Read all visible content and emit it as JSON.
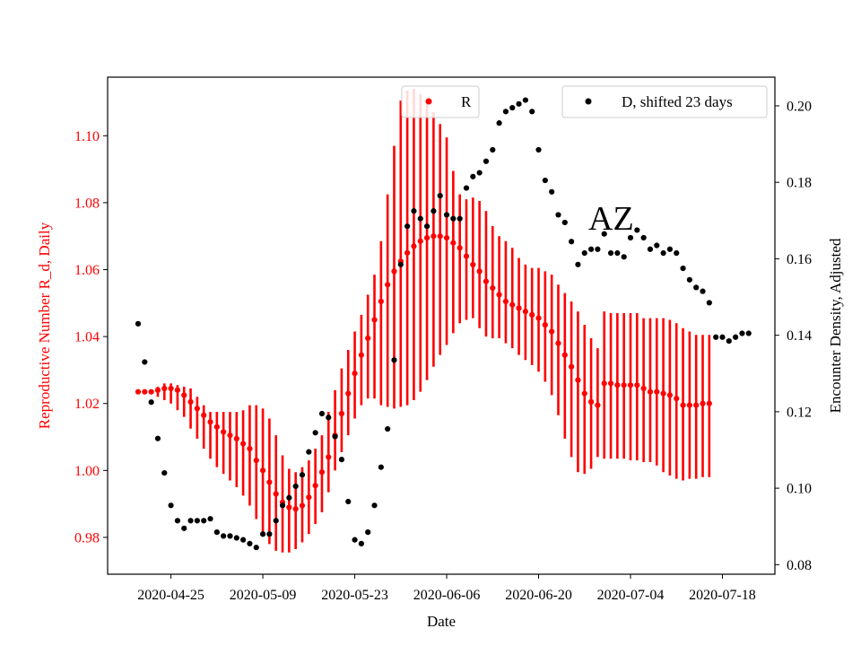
{
  "chart_data": {
    "type": "scatter",
    "title": "",
    "annotation": "AZ",
    "xlabel": "Date",
    "ylabel_left": "Reproductive Number R_d, Daily",
    "ylabel_right": "Encounter Density, Adjusted",
    "x_tick_labels": [
      "2020-04-25",
      "2020-05-09",
      "2020-05-23",
      "2020-06-06",
      "2020-06-20",
      "2020-07-04",
      "2020-07-18"
    ],
    "left_ticks": [
      "0.98",
      "1.00",
      "1.02",
      "1.04",
      "1.06",
      "1.08",
      "1.10"
    ],
    "right_ticks": [
      "0.08",
      "0.10",
      "0.12",
      "0.14",
      "0.16",
      "0.18",
      "0.20"
    ],
    "ylim_left": [
      0.969,
      1.1175
    ],
    "ylim_right": [
      0.0775,
      0.2075
    ],
    "grid": false,
    "colors": {
      "R": "#ff0000",
      "D": "#000000",
      "left_axis_text": "#ff0000"
    },
    "series": [
      {
        "name": "R",
        "legend_label": "R",
        "axis": "left",
        "x_start": "2020-04-20",
        "values": [
          1.0235,
          1.0235,
          1.0235,
          1.024,
          1.0245,
          1.0245,
          1.024,
          1.0225,
          1.0205,
          1.0185,
          1.0165,
          1.0145,
          1.013,
          1.0115,
          1.0105,
          1.0095,
          1.008,
          1.0065,
          1.003,
          1.0,
          0.9965,
          0.993,
          0.9905,
          0.989,
          0.9885,
          0.9895,
          0.992,
          0.9955,
          0.9995,
          1.004,
          1.0105,
          1.017,
          1.023,
          1.029,
          1.0345,
          1.0395,
          1.045,
          1.0505,
          1.0555,
          1.0595,
          1.0625,
          1.065,
          1.067,
          1.0685,
          1.0695,
          1.07,
          1.07,
          1.0695,
          1.068,
          1.0665,
          1.064,
          1.0615,
          1.0595,
          1.0565,
          1.0545,
          1.0525,
          1.0505,
          1.0495,
          1.0485,
          1.0475,
          1.0465,
          1.0455,
          1.0435,
          1.0415,
          1.038,
          1.0345,
          1.031,
          1.027,
          1.023,
          1.0205,
          1.0195,
          1.026,
          1.026,
          1.0255,
          1.0255,
          1.0255,
          1.0255,
          1.0245,
          1.0235,
          1.0235,
          1.023,
          1.0225,
          1.0215,
          1.0195,
          1.0195,
          1.0195,
          1.02,
          1.02
        ],
        "error_lower": [
          1.023,
          1.023,
          1.023,
          1.022,
          1.021,
          1.02,
          1.018,
          1.016,
          1.0125,
          1.0095,
          1.0065,
          1.0035,
          1.001,
          0.999,
          0.997,
          0.995,
          0.9925,
          0.9895,
          0.9855,
          0.9815,
          0.978,
          0.976,
          0.9755,
          0.9755,
          0.9765,
          0.9785,
          0.981,
          0.984,
          0.9875,
          0.9935,
          1.0,
          1.0055,
          1.0105,
          1.0155,
          1.0195,
          1.0215,
          1.0215,
          1.0195,
          1.019,
          1.0185,
          1.019,
          1.0195,
          1.021,
          1.0235,
          1.027,
          1.031,
          1.0345,
          1.0375,
          1.041,
          1.044,
          1.045,
          1.0455,
          1.0425,
          1.04,
          1.0395,
          1.0395,
          1.038,
          1.0365,
          1.0345,
          1.033,
          1.0315,
          1.0295,
          1.0265,
          1.0225,
          1.0165,
          1.0095,
          1.004,
          0.9995,
          0.999,
          1.0005,
          1.004,
          1.0035,
          1.0035,
          1.0035,
          1.0035,
          1.003,
          1.003,
          1.0025,
          1.0025,
          1.0015,
          0.9995,
          0.9985,
          0.9975,
          0.997,
          0.9975,
          0.9975,
          0.998,
          0.998
        ],
        "error_upper": [
          1.024,
          1.024,
          1.024,
          1.025,
          1.026,
          1.026,
          1.0255,
          1.025,
          1.0245,
          1.022,
          1.0195,
          1.0175,
          1.0175,
          1.0175,
          1.0175,
          1.0175,
          1.018,
          1.0195,
          1.0195,
          1.0185,
          1.0155,
          1.0105,
          1.0045,
          1.0005,
          0.9995,
          1.001,
          1.003,
          1.0065,
          1.0105,
          1.0175,
          1.024,
          1.0305,
          1.036,
          1.0415,
          1.0465,
          1.0525,
          1.0585,
          1.0685,
          1.0825,
          1.097,
          1.1105,
          1.1135,
          1.114,
          1.1125,
          1.1095,
          1.107,
          1.1035,
          1.0995,
          1.0895,
          1.0825,
          1.081,
          1.0815,
          1.0805,
          1.0775,
          1.073,
          1.07,
          1.0685,
          1.0665,
          1.0635,
          1.0615,
          1.0605,
          1.0605,
          1.0595,
          1.0585,
          1.0555,
          1.053,
          1.0505,
          1.0475,
          1.0435,
          1.0395,
          1.0365,
          1.0475,
          1.047,
          1.047,
          1.047,
          1.047,
          1.047,
          1.0455,
          1.0455,
          1.0455,
          1.0455,
          1.045,
          1.044,
          1.0425,
          1.0415,
          1.0405,
          1.0405,
          1.0405
        ]
      },
      {
        "name": "D, shifted 23 days",
        "legend_label": "D, shifted 23 days",
        "axis": "right",
        "x_start": "2020-04-20",
        "values": [
          0.143,
          0.133,
          0.1225,
          0.113,
          0.104,
          0.0955,
          0.0915,
          0.0895,
          0.0915,
          0.0915,
          0.0915,
          0.092,
          0.0885,
          0.0875,
          0.0875,
          0.087,
          0.0865,
          0.0855,
          0.0845,
          0.088,
          0.088,
          0.0915,
          0.0955,
          0.0975,
          0.1005,
          0.1035,
          0.1095,
          0.1145,
          0.1195,
          0.1185,
          0.1135,
          0.1075,
          0.0965,
          0.0865,
          0.0855,
          0.0885,
          0.0955,
          0.1055,
          0.1155,
          0.1335,
          0.1585,
          0.1685,
          0.1725,
          0.1705,
          0.1685,
          0.1725,
          0.1765,
          0.1715,
          0.1705,
          0.1705,
          0.1785,
          0.1815,
          0.1825,
          0.1855,
          0.1885,
          0.1955,
          0.1985,
          0.1995,
          0.2005,
          0.2015,
          0.1985,
          0.1885,
          0.1805,
          0.1775,
          0.1715,
          0.1695,
          0.1645,
          0.1585,
          0.1615,
          0.1625,
          0.1625,
          0.1665,
          0.1615,
          0.1615,
          0.1605,
          0.1655,
          0.1675,
          0.1655,
          0.1625,
          0.1635,
          0.1615,
          0.1625,
          0.1615,
          0.1575,
          0.1545,
          0.1525,
          0.1515,
          0.1485,
          0.1395,
          0.1395,
          0.1385,
          0.1395,
          0.1405,
          0.1405
        ]
      }
    ]
  }
}
